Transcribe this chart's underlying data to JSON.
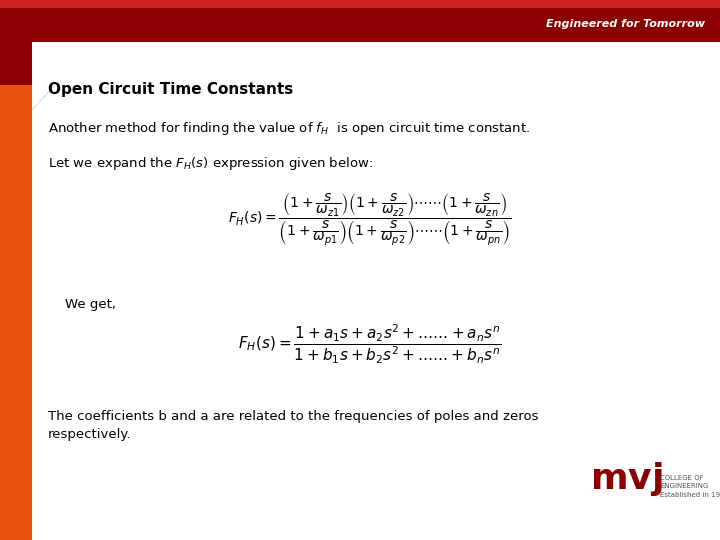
{
  "title": "Open Circuit Time Constants",
  "line1_plain": "Another method for finding the value of ",
  "line1_math": "$f_H$",
  "line1_end": "  is open circuit time constant.",
  "line2": "Let we expand the $F_H(s)$ expression given below:",
  "we_get": "We get,",
  "footer": "The coefficients b and a are related to the frequencies of poles and zeros\nrespectively.",
  "bg_color": "#ffffff",
  "title_color": "#000000",
  "text_color": "#000000",
  "header_bg_dark": "#8B0000",
  "header_bg_light": "#CC1111",
  "left_bar_color": "#E8520A",
  "header_text": "Engineered for Tomorrow",
  "header_text_color": "#ffffff"
}
